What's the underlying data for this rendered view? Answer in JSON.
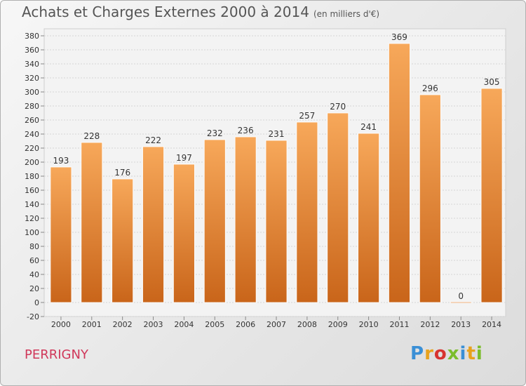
{
  "header": {
    "title": "Achats et Charges Externes 2000 à 2014",
    "subtitle": "(en milliers d'€)"
  },
  "footer": {
    "commune": "PERRIGNY",
    "brand_letters": [
      "P",
      "r",
      "o",
      "x",
      "i",
      "t",
      "i"
    ],
    "brand_colors": [
      "#3a8fd6",
      "#e8a21c",
      "#d7332f",
      "#7bbd2c",
      "#3a8fd6",
      "#e8a21c",
      "#7bbd2c"
    ]
  },
  "colors": {
    "bar_top": "#f7a85a",
    "bar_bottom": "#c9651a",
    "grid": "#d6d6d6",
    "axis_text": "#333333"
  },
  "chart_data": {
    "type": "bar",
    "title": "Achats et Charges Externes 2000 à 2014",
    "subtitle": "(en milliers d'€)",
    "categories": [
      "2000",
      "2001",
      "2002",
      "2003",
      "2004",
      "2005",
      "2006",
      "2007",
      "2008",
      "2009",
      "2010",
      "2011",
      "2012",
      "2013",
      "2014"
    ],
    "values": [
      193,
      228,
      176,
      222,
      197,
      232,
      236,
      231,
      257,
      270,
      241,
      369,
      296,
      0,
      305
    ],
    "ylim": [
      -20,
      380
    ],
    "yticks": [
      -20,
      0,
      20,
      40,
      60,
      80,
      100,
      120,
      140,
      160,
      180,
      200,
      220,
      240,
      260,
      280,
      300,
      320,
      340,
      360,
      380
    ],
    "grid": true,
    "data_labels": true
  }
}
